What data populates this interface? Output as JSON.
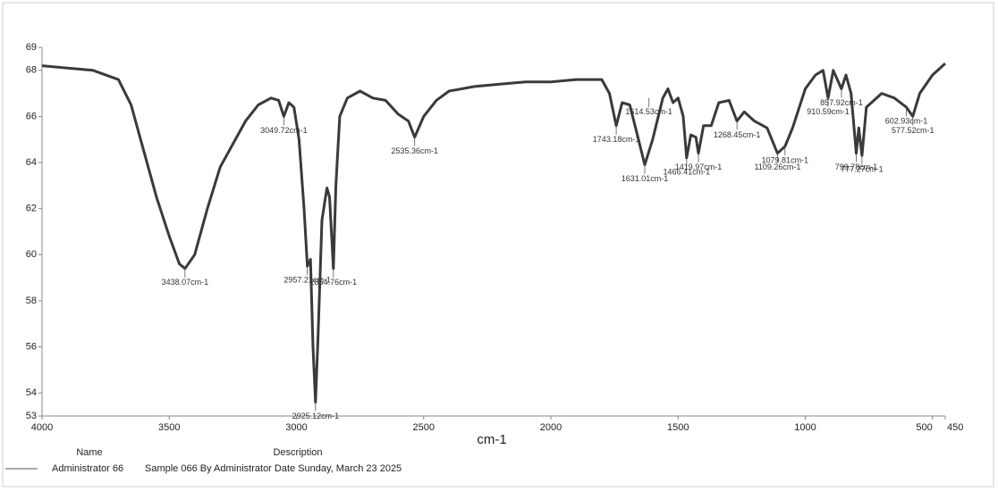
{
  "chart_data": {
    "type": "line",
    "x_label": "cm-1",
    "xlim": [
      4000,
      450
    ],
    "ylim": [
      53,
      69
    ],
    "xticks": [
      4000,
      3500,
      3000,
      2500,
      2000,
      1500,
      1000,
      500,
      450
    ],
    "yticks": [
      53,
      54,
      56,
      58,
      60,
      62,
      64,
      66,
      68,
      69
    ],
    "x": [
      4000,
      3900,
      3800,
      3700,
      3650,
      3600,
      3550,
      3500,
      3460,
      3438.07,
      3400,
      3350,
      3300,
      3250,
      3200,
      3150,
      3100,
      3070,
      3049.72,
      3030,
      3010,
      2990,
      2970,
      2957.21,
      2945,
      2935,
      2925,
      2915,
      2900,
      2880,
      2870,
      2860,
      2854.76,
      2845,
      2830,
      2800,
      2750,
      2700,
      2650,
      2600,
      2560,
      2535.36,
      2500,
      2450,
      2400,
      2300,
      2200,
      2100,
      2000,
      1900,
      1800,
      1770,
      1743.18,
      1720,
      1690,
      1660,
      1631.01,
      1600,
      1560,
      1540,
      1520,
      1500,
      1480,
      1466.41,
      1450,
      1430,
      1419.97,
      1400,
      1370,
      1340,
      1300,
      1268.45,
      1240,
      1200,
      1150,
      1109.26,
      1079.81,
      1050,
      1000,
      960,
      930,
      910.59,
      890,
      857.92,
      840,
      820,
      799.78,
      790,
      777.27,
      760,
      700,
      650,
      602.93,
      577.52,
      550,
      500,
      450
    ],
    "series": [
      {
        "name": "Administrator 66",
        "color": "#3a3a3a",
        "values": [
          68.2,
          68.1,
          68.0,
          67.6,
          66.5,
          64.5,
          62.5,
          60.8,
          59.6,
          59.4,
          60.0,
          62.0,
          63.8,
          64.8,
          65.8,
          66.5,
          66.8,
          66.7,
          66.0,
          66.6,
          66.4,
          65.0,
          62.0,
          59.5,
          59.8,
          56.0,
          53.6,
          56.5,
          61.5,
          62.9,
          62.5,
          60.5,
          59.4,
          63.0,
          66.0,
          66.8,
          67.1,
          66.8,
          66.7,
          66.1,
          65.8,
          65.1,
          66.0,
          66.7,
          67.1,
          67.3,
          67.4,
          67.5,
          67.5,
          67.6,
          67.6,
          67.0,
          65.6,
          66.6,
          66.5,
          65.2,
          63.9,
          65.0,
          66.8,
          67.2,
          66.6,
          66.8,
          66.0,
          64.2,
          65.2,
          65.1,
          64.4,
          65.6,
          65.6,
          66.6,
          66.7,
          65.8,
          66.2,
          65.8,
          65.5,
          64.4,
          64.7,
          65.5,
          67.2,
          67.8,
          68.0,
          66.8,
          68.0,
          67.2,
          67.8,
          67.0,
          64.4,
          65.5,
          64.3,
          66.4,
          67.0,
          66.8,
          66.4,
          66.0,
          67.0,
          67.8,
          68.3
        ]
      }
    ],
    "annotations": [
      {
        "x": 3438.07,
        "y": 59.4,
        "label": "3438.07cm-1"
      },
      {
        "x": 3049.72,
        "y": 66.0,
        "label": "3049.72cm-1"
      },
      {
        "x": 2957.21,
        "y": 59.5,
        "label": "2957.21cm-1"
      },
      {
        "x": 2854.76,
        "y": 59.4,
        "label": "2854.76cm-1"
      },
      {
        "x": 2925,
        "y": 53.6,
        "label": "2925.12cm-1"
      },
      {
        "x": 2535.36,
        "y": 65.1,
        "label": "2535.36cm-1"
      },
      {
        "x": 1743.18,
        "y": 65.6,
        "label": "1743.18cm-1"
      },
      {
        "x": 1631.01,
        "y": 63.9,
        "label": "1631.01cm-1"
      },
      {
        "x": 1614.53,
        "y": 66.8,
        "label": "1614.53cm-1"
      },
      {
        "x": 1466.41,
        "y": 64.2,
        "label": "1466.41cm-1"
      },
      {
        "x": 1419.97,
        "y": 64.4,
        "label": "1419.97cm-1"
      },
      {
        "x": 1268.45,
        "y": 65.8,
        "label": "1268.45cm-1"
      },
      {
        "x": 1079.81,
        "y": 64.7,
        "label": "1079.81cm-1"
      },
      {
        "x": 1109.26,
        "y": 64.4,
        "label": "1109.26cm-1"
      },
      {
        "x": 910.59,
        "y": 66.8,
        "label": "910.59cm-1"
      },
      {
        "x": 857.92,
        "y": 67.2,
        "label": "857.92cm-1"
      },
      {
        "x": 777.27,
        "y": 64.3,
        "label": "777.27cm-1"
      },
      {
        "x": 799.78,
        "y": 64.4,
        "label": "799.78cm-1"
      },
      {
        "x": 602.93,
        "y": 66.4,
        "label": "602.93cm-1"
      },
      {
        "x": 577.52,
        "y": 66.0,
        "label": "577.52cm-1"
      }
    ],
    "legend_headers": [
      "Name",
      "Description"
    ],
    "description": "Sample 066 By Administrator Date Sunday, March 23 2025"
  }
}
